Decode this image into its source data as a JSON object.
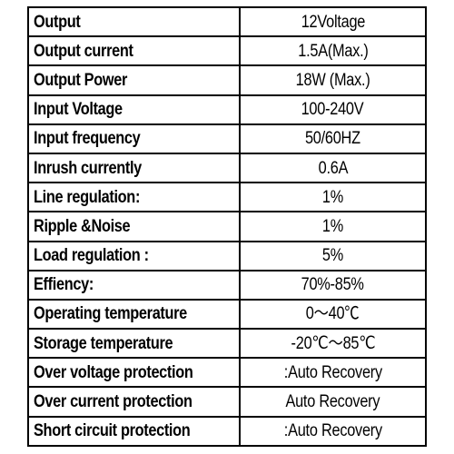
{
  "spec_table": {
    "rows": [
      {
        "parameter": "Output",
        "value": "12Voltage"
      },
      {
        "parameter": "Output current",
        "value": "1.5A(Max.)"
      },
      {
        "parameter": "Output Power",
        "value": "18W (Max.)"
      },
      {
        "parameter": "Input Voltage",
        "value": "100-240V"
      },
      {
        "parameter": "Input frequency",
        "value": "50/60HZ"
      },
      {
        "parameter": "Inrush currently",
        "value": "0.6A"
      },
      {
        "parameter": "Line regulation:",
        "value": "1%"
      },
      {
        "parameter": "Ripple &Noise",
        "value": "1%"
      },
      {
        "parameter": "Load regulation :",
        "value": "5%"
      },
      {
        "parameter": "Effiency:",
        "value": "70%-85%"
      },
      {
        "parameter": "Operating temperature",
        "value": "0～40℃"
      },
      {
        "parameter": "Storage temperature",
        "value": "-20℃～85℃"
      },
      {
        "parameter": "Over voltage protection",
        "value": ":Auto Recovery"
      },
      {
        "parameter": "Over current protection",
        "value": "Auto Recovery"
      },
      {
        "parameter": "Short circuit protection",
        "value": ":Auto Recovery"
      }
    ]
  }
}
